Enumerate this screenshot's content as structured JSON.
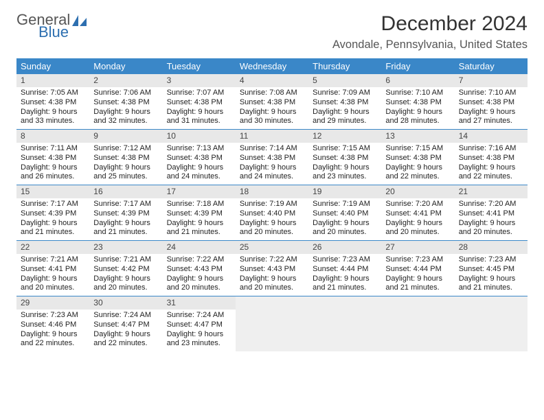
{
  "brand": {
    "name1": "General",
    "name2": "Blue"
  },
  "title": "December 2024",
  "location": "Avondale, Pennsylvania, United States",
  "colors": {
    "header_bg": "#3a87c8",
    "daynum_bg": "#e8e8e8",
    "empty_bg": "#efefef"
  },
  "day_headers": [
    "Sunday",
    "Monday",
    "Tuesday",
    "Wednesday",
    "Thursday",
    "Friday",
    "Saturday"
  ],
  "weeks": [
    [
      {
        "n": "1",
        "sr": "Sunrise: 7:05 AM",
        "ss": "Sunset: 4:38 PM",
        "d1": "Daylight: 9 hours",
        "d2": "and 33 minutes."
      },
      {
        "n": "2",
        "sr": "Sunrise: 7:06 AM",
        "ss": "Sunset: 4:38 PM",
        "d1": "Daylight: 9 hours",
        "d2": "and 32 minutes."
      },
      {
        "n": "3",
        "sr": "Sunrise: 7:07 AM",
        "ss": "Sunset: 4:38 PM",
        "d1": "Daylight: 9 hours",
        "d2": "and 31 minutes."
      },
      {
        "n": "4",
        "sr": "Sunrise: 7:08 AM",
        "ss": "Sunset: 4:38 PM",
        "d1": "Daylight: 9 hours",
        "d2": "and 30 minutes."
      },
      {
        "n": "5",
        "sr": "Sunrise: 7:09 AM",
        "ss": "Sunset: 4:38 PM",
        "d1": "Daylight: 9 hours",
        "d2": "and 29 minutes."
      },
      {
        "n": "6",
        "sr": "Sunrise: 7:10 AM",
        "ss": "Sunset: 4:38 PM",
        "d1": "Daylight: 9 hours",
        "d2": "and 28 minutes."
      },
      {
        "n": "7",
        "sr": "Sunrise: 7:10 AM",
        "ss": "Sunset: 4:38 PM",
        "d1": "Daylight: 9 hours",
        "d2": "and 27 minutes."
      }
    ],
    [
      {
        "n": "8",
        "sr": "Sunrise: 7:11 AM",
        "ss": "Sunset: 4:38 PM",
        "d1": "Daylight: 9 hours",
        "d2": "and 26 minutes."
      },
      {
        "n": "9",
        "sr": "Sunrise: 7:12 AM",
        "ss": "Sunset: 4:38 PM",
        "d1": "Daylight: 9 hours",
        "d2": "and 25 minutes."
      },
      {
        "n": "10",
        "sr": "Sunrise: 7:13 AM",
        "ss": "Sunset: 4:38 PM",
        "d1": "Daylight: 9 hours",
        "d2": "and 24 minutes."
      },
      {
        "n": "11",
        "sr": "Sunrise: 7:14 AM",
        "ss": "Sunset: 4:38 PM",
        "d1": "Daylight: 9 hours",
        "d2": "and 24 minutes."
      },
      {
        "n": "12",
        "sr": "Sunrise: 7:15 AM",
        "ss": "Sunset: 4:38 PM",
        "d1": "Daylight: 9 hours",
        "d2": "and 23 minutes."
      },
      {
        "n": "13",
        "sr": "Sunrise: 7:15 AM",
        "ss": "Sunset: 4:38 PM",
        "d1": "Daylight: 9 hours",
        "d2": "and 22 minutes."
      },
      {
        "n": "14",
        "sr": "Sunrise: 7:16 AM",
        "ss": "Sunset: 4:38 PM",
        "d1": "Daylight: 9 hours",
        "d2": "and 22 minutes."
      }
    ],
    [
      {
        "n": "15",
        "sr": "Sunrise: 7:17 AM",
        "ss": "Sunset: 4:39 PM",
        "d1": "Daylight: 9 hours",
        "d2": "and 21 minutes."
      },
      {
        "n": "16",
        "sr": "Sunrise: 7:17 AM",
        "ss": "Sunset: 4:39 PM",
        "d1": "Daylight: 9 hours",
        "d2": "and 21 minutes."
      },
      {
        "n": "17",
        "sr": "Sunrise: 7:18 AM",
        "ss": "Sunset: 4:39 PM",
        "d1": "Daylight: 9 hours",
        "d2": "and 21 minutes."
      },
      {
        "n": "18",
        "sr": "Sunrise: 7:19 AM",
        "ss": "Sunset: 4:40 PM",
        "d1": "Daylight: 9 hours",
        "d2": "and 20 minutes."
      },
      {
        "n": "19",
        "sr": "Sunrise: 7:19 AM",
        "ss": "Sunset: 4:40 PM",
        "d1": "Daylight: 9 hours",
        "d2": "and 20 minutes."
      },
      {
        "n": "20",
        "sr": "Sunrise: 7:20 AM",
        "ss": "Sunset: 4:41 PM",
        "d1": "Daylight: 9 hours",
        "d2": "and 20 minutes."
      },
      {
        "n": "21",
        "sr": "Sunrise: 7:20 AM",
        "ss": "Sunset: 4:41 PM",
        "d1": "Daylight: 9 hours",
        "d2": "and 20 minutes."
      }
    ],
    [
      {
        "n": "22",
        "sr": "Sunrise: 7:21 AM",
        "ss": "Sunset: 4:41 PM",
        "d1": "Daylight: 9 hours",
        "d2": "and 20 minutes."
      },
      {
        "n": "23",
        "sr": "Sunrise: 7:21 AM",
        "ss": "Sunset: 4:42 PM",
        "d1": "Daylight: 9 hours",
        "d2": "and 20 minutes."
      },
      {
        "n": "24",
        "sr": "Sunrise: 7:22 AM",
        "ss": "Sunset: 4:43 PM",
        "d1": "Daylight: 9 hours",
        "d2": "and 20 minutes."
      },
      {
        "n": "25",
        "sr": "Sunrise: 7:22 AM",
        "ss": "Sunset: 4:43 PM",
        "d1": "Daylight: 9 hours",
        "d2": "and 20 minutes."
      },
      {
        "n": "26",
        "sr": "Sunrise: 7:23 AM",
        "ss": "Sunset: 4:44 PM",
        "d1": "Daylight: 9 hours",
        "d2": "and 21 minutes."
      },
      {
        "n": "27",
        "sr": "Sunrise: 7:23 AM",
        "ss": "Sunset: 4:44 PM",
        "d1": "Daylight: 9 hours",
        "d2": "and 21 minutes."
      },
      {
        "n": "28",
        "sr": "Sunrise: 7:23 AM",
        "ss": "Sunset: 4:45 PM",
        "d1": "Daylight: 9 hours",
        "d2": "and 21 minutes."
      }
    ],
    [
      {
        "n": "29",
        "sr": "Sunrise: 7:23 AM",
        "ss": "Sunset: 4:46 PM",
        "d1": "Daylight: 9 hours",
        "d2": "and 22 minutes."
      },
      {
        "n": "30",
        "sr": "Sunrise: 7:24 AM",
        "ss": "Sunset: 4:47 PM",
        "d1": "Daylight: 9 hours",
        "d2": "and 22 minutes."
      },
      {
        "n": "31",
        "sr": "Sunrise: 7:24 AM",
        "ss": "Sunset: 4:47 PM",
        "d1": "Daylight: 9 hours",
        "d2": "and 23 minutes."
      },
      null,
      null,
      null,
      null
    ]
  ]
}
